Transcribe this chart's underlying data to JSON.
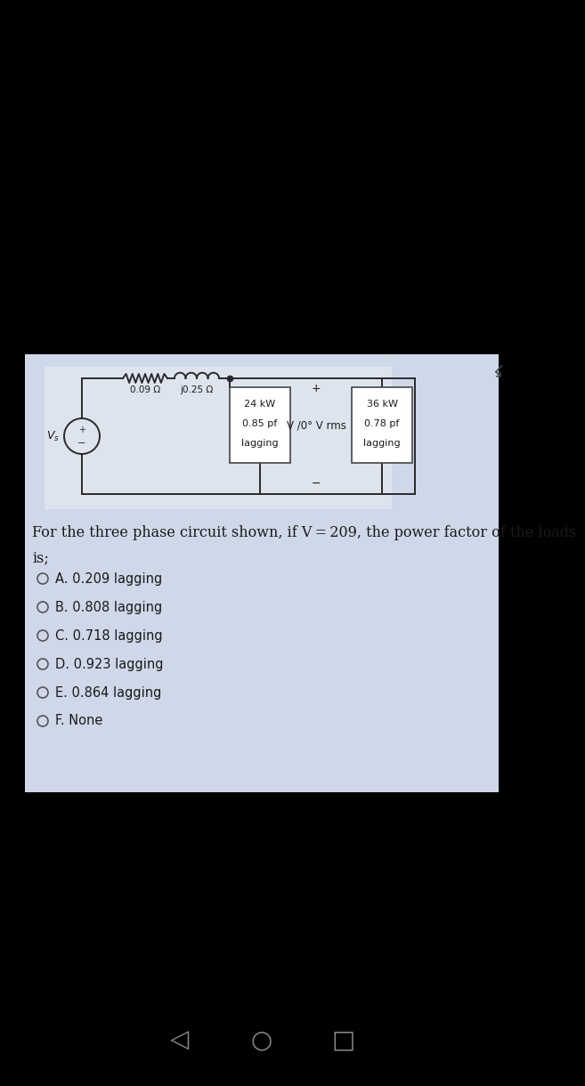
{
  "bg_color": "#000000",
  "panel_bg": "#cfd8e8",
  "circuit_bg": "#e8edf5",
  "title_question_line1": "For the three phase circuit shown, if V = 209, the power factor of the loads",
  "title_question_line2": "is;",
  "options": [
    "A. 0.209 lagging",
    "B. 0.808 lagging",
    "C. 0.718 lagging",
    "D. 0.923 lagging",
    "E. 0.864 lagging",
    "F. None"
  ],
  "resistor_label": "0.09 Ω",
  "inductor_label": "j0.25 Ω",
  "load1_lines": [
    "24 kW",
    "0.85 pf",
    "lagging"
  ],
  "load2_lines": [
    "36 kW",
    "0.78 pf",
    "lagging"
  ],
  "voltage_label": "V /0° V rms",
  "plus_label": "+",
  "minus_label": "−",
  "wire_color": "#2a2a2a",
  "text_color": "#1a1a1a",
  "box_edge_color": "#444444"
}
